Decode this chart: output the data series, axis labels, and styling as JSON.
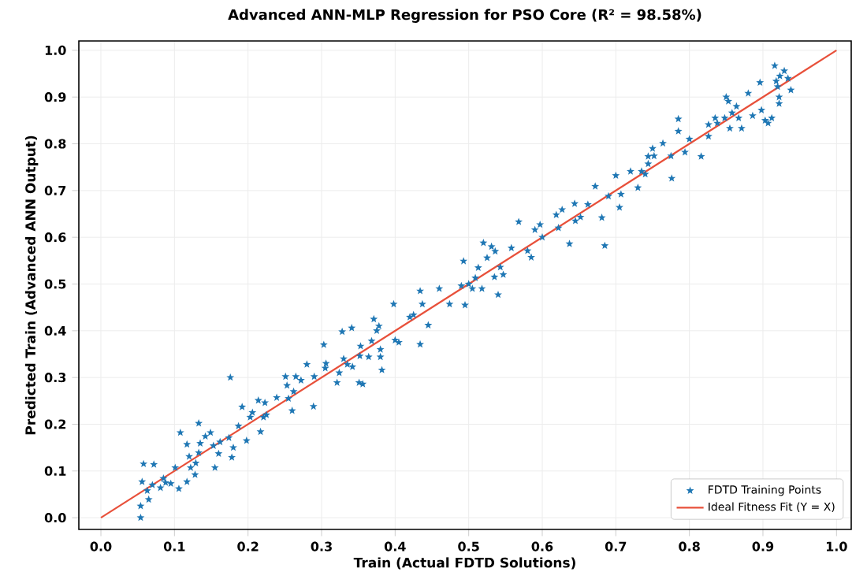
{
  "chart_data": {
    "type": "scatter",
    "title": "Advanced ANN-MLP Regression for PSO Core (R² = 98.58%)",
    "xlabel": "Train (Actual FDTD Solutions)",
    "ylabel": "Predicted Train (Advanced ANN Output)",
    "xlim": [
      -0.03,
      1.02
    ],
    "ylim": [
      -0.025,
      1.02
    ],
    "xticks": [
      {
        "value": 0,
        "label": "0.0"
      },
      {
        "value": 0.1,
        "label": "0.1"
      },
      {
        "value": 0.2,
        "label": "0.2"
      },
      {
        "value": 0.3,
        "label": "0.3"
      },
      {
        "value": 0.4,
        "label": "0.4"
      },
      {
        "value": 0.5,
        "label": "0.5"
      },
      {
        "value": 0.6,
        "label": "0.6"
      },
      {
        "value": 0.7,
        "label": "0.7"
      },
      {
        "value": 0.8,
        "label": "0.8"
      },
      {
        "value": 0.9,
        "label": "0.9"
      },
      {
        "value": 1,
        "label": "1.0"
      }
    ],
    "yticks": [
      {
        "value": 0,
        "label": "0.0"
      },
      {
        "value": 0.1,
        "label": "0.1"
      },
      {
        "value": 0.2,
        "label": "0.2"
      },
      {
        "value": 0.3,
        "label": "0.3"
      },
      {
        "value": 0.4,
        "label": "0.4"
      },
      {
        "value": 0.5,
        "label": "0.5"
      },
      {
        "value": 0.6,
        "label": "0.6"
      },
      {
        "value": 0.7,
        "label": "0.7"
      },
      {
        "value": 0.8,
        "label": "0.8"
      },
      {
        "value": 0.9,
        "label": "0.9"
      },
      {
        "value": 1,
        "label": "1.0"
      }
    ],
    "grid": true,
    "legend": "bottom right",
    "series": [
      {
        "name": "FDTD Training Points",
        "color": "#1f77b4",
        "marker": "star",
        "x": [
          0.054,
          0.054,
          0.065,
          0.063,
          0.056,
          0.058,
          0.072,
          0.07,
          0.081,
          0.085,
          0.088,
          0.095,
          0.101,
          0.106,
          0.117,
          0.122,
          0.128,
          0.133,
          0.129,
          0.108,
          0.117,
          0.12,
          0.133,
          0.135,
          0.142,
          0.149,
          0.153,
          0.155,
          0.16,
          0.162,
          0.174,
          0.176,
          0.178,
          0.18,
          0.187,
          0.192,
          0.198,
          0.203,
          0.206,
          0.214,
          0.217,
          0.221,
          0.223,
          0.225,
          0.239,
          0.251,
          0.253,
          0.255,
          0.26,
          0.262,
          0.265,
          0.272,
          0.28,
          0.289,
          0.29,
          0.303,
          0.305,
          0.306,
          0.321,
          0.324,
          0.328,
          0.33,
          0.335,
          0.341,
          0.342,
          0.351,
          0.352,
          0.353,
          0.364,
          0.356,
          0.368,
          0.38,
          0.38,
          0.382,
          0.375,
          0.378,
          0.371,
          0.4,
          0.405,
          0.398,
          0.42,
          0.425,
          0.434,
          0.437,
          0.445,
          0.434,
          0.46,
          0.474,
          0.493,
          0.495,
          0.49,
          0.5,
          0.505,
          0.509,
          0.513,
          0.518,
          0.52,
          0.525,
          0.531,
          0.535,
          0.536,
          0.54,
          0.543,
          0.547,
          0.558,
          0.568,
          0.58,
          0.585,
          0.59,
          0.597,
          0.6,
          0.619,
          0.622,
          0.627,
          0.637,
          0.644,
          0.645,
          0.652,
          0.662,
          0.672,
          0.681,
          0.685,
          0.69,
          0.7,
          0.705,
          0.707,
          0.72,
          0.73,
          0.735,
          0.74,
          0.744,
          0.744,
          0.75,
          0.752,
          0.764,
          0.776,
          0.775,
          0.785,
          0.785,
          0.794,
          0.8,
          0.816,
          0.826,
          0.826,
          0.835,
          0.838,
          0.848,
          0.85,
          0.853,
          0.855,
          0.858,
          0.864,
          0.867,
          0.871,
          0.88,
          0.886,
          0.896,
          0.898,
          0.903,
          0.907,
          0.912,
          0.916,
          0.918,
          0.923,
          0.92,
          0.922,
          0.929,
          0.938,
          0.934,
          0.922
        ],
        "values": [
          0.0,
          0.025,
          0.039,
          0.058,
          0.077,
          0.115,
          0.114,
          0.07,
          0.064,
          0.084,
          0.075,
          0.073,
          0.107,
          0.062,
          0.077,
          0.107,
          0.092,
          0.139,
          0.117,
          0.182,
          0.157,
          0.131,
          0.202,
          0.159,
          0.174,
          0.182,
          0.154,
          0.107,
          0.137,
          0.162,
          0.171,
          0.3,
          0.129,
          0.15,
          0.196,
          0.237,
          0.165,
          0.215,
          0.225,
          0.251,
          0.184,
          0.215,
          0.246,
          0.22,
          0.257,
          0.302,
          0.283,
          0.255,
          0.229,
          0.27,
          0.302,
          0.294,
          0.328,
          0.238,
          0.302,
          0.37,
          0.32,
          0.33,
          0.289,
          0.31,
          0.398,
          0.34,
          0.328,
          0.406,
          0.323,
          0.289,
          0.346,
          0.367,
          0.344,
          0.286,
          0.378,
          0.344,
          0.36,
          0.316,
          0.4,
          0.41,
          0.425,
          0.38,
          0.375,
          0.457,
          0.429,
          0.434,
          0.485,
          0.457,
          0.412,
          0.371,
          0.49,
          0.457,
          0.549,
          0.455,
          0.496,
          0.5,
          0.49,
          0.513,
          0.535,
          0.49,
          0.588,
          0.556,
          0.58,
          0.515,
          0.57,
          0.477,
          0.536,
          0.52,
          0.577,
          0.633,
          0.571,
          0.557,
          0.616,
          0.627,
          0.6,
          0.648,
          0.62,
          0.659,
          0.586,
          0.672,
          0.635,
          0.643,
          0.67,
          0.709,
          0.642,
          0.582,
          0.688,
          0.732,
          0.664,
          0.692,
          0.741,
          0.706,
          0.741,
          0.735,
          0.773,
          0.757,
          0.79,
          0.774,
          0.801,
          0.726,
          0.774,
          0.853,
          0.827,
          0.782,
          0.81,
          0.773,
          0.816,
          0.841,
          0.855,
          0.844,
          0.855,
          0.9,
          0.891,
          0.833,
          0.866,
          0.88,
          0.855,
          0.833,
          0.908,
          0.86,
          0.931,
          0.872,
          0.85,
          0.844,
          0.855,
          0.967,
          0.934,
          0.945,
          0.922,
          0.9,
          0.956,
          0.915,
          0.94,
          0.886
        ]
      },
      {
        "name": "Ideal Fitness Fit (Y = X)",
        "color": "#e8503a",
        "type": "line",
        "x": [
          0,
          1
        ],
        "values": [
          0,
          1
        ]
      }
    ]
  }
}
